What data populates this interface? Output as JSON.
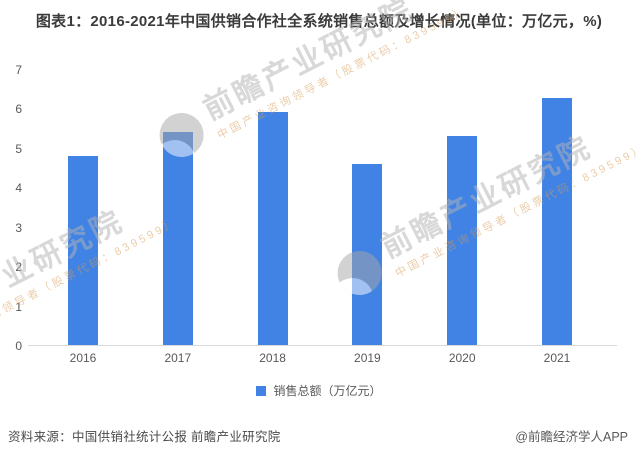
{
  "title": "图表1：2016-2021年中国供销合作社全系统销售总额及增长情况(单位：万亿元，%)",
  "chart_data": {
    "type": "bar",
    "title": "图表1：2016-2021年中国供销合作社全系统销售总额及增长情况(单位：万亿元，%)",
    "categories": [
      "2016",
      "2017",
      "2018",
      "2019",
      "2020",
      "2021"
    ],
    "series": [
      {
        "name": "销售总额（万亿元）",
        "values": [
          4.8,
          5.4,
          5.9,
          4.6,
          5.3,
          6.26
        ]
      }
    ],
    "xlabel": "",
    "ylabel": "",
    "ylim": [
      0,
      7
    ],
    "ytick_step": 1,
    "grid": false,
    "legend_position": "bottom"
  },
  "legend": {
    "label": "销售总额（万亿元）"
  },
  "footer": {
    "source": "资料来源：中国供销社统计公报 前瞻产业研究院",
    "credit": "@前瞻经济学人APP"
  },
  "watermark": {
    "brand": "前瞻产业研究院",
    "tagline": "中国产业咨询领导者（股票代码：839599）"
  },
  "colors": {
    "bar": "#4183e4",
    "axis_line": "#d9d9d9",
    "tick_text": "#595959",
    "title_text": "#3b3b3b",
    "footer_text": "#4a4a4a"
  }
}
